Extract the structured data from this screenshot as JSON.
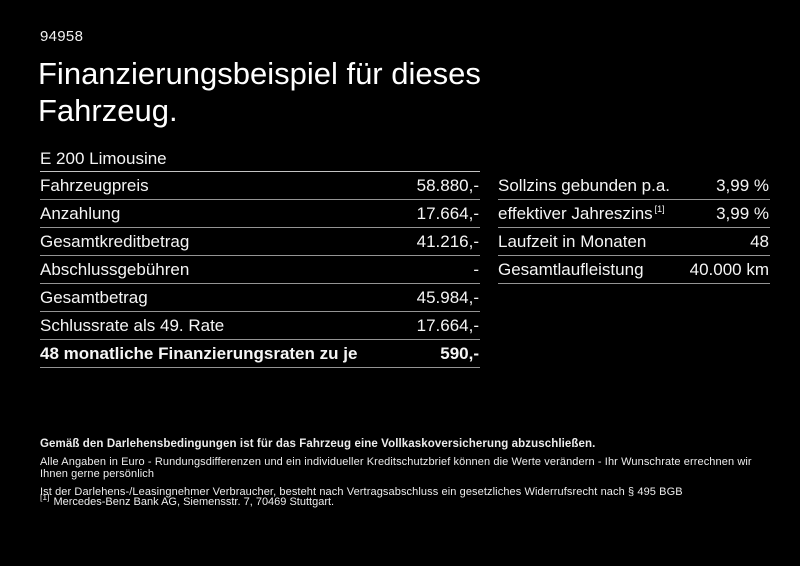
{
  "page": {
    "ref_number": "94958",
    "title_line1": "Finanzierungsbeispiel für dieses",
    "title_line2": "Fahrzeug."
  },
  "finance_table": {
    "header": "E 200 Limousine",
    "rows": [
      {
        "label": "Fahrzeugpreis",
        "value": "58.880,-"
      },
      {
        "label": "Anzahlung",
        "value": "17.664,-"
      },
      {
        "label": "Gesamtkreditbetrag",
        "value": "41.216,-"
      },
      {
        "label": "Abschlussgebühren",
        "value": "-"
      },
      {
        "label": "Gesamtbetrag",
        "value": "45.984,-"
      },
      {
        "label": "Schlussrate als 49. Rate",
        "value": "17.664,-"
      },
      {
        "label": "48 monatliche Finanzierungsraten zu je",
        "value": "590,-"
      }
    ]
  },
  "conditions_table": {
    "rows": [
      {
        "label": "Sollzins gebunden p.a.",
        "value": "3,99 %"
      },
      {
        "label": "effektiver Jahreszins",
        "sup": "[1]",
        "value": "3,99 %"
      },
      {
        "label": "Laufzeit in Monaten",
        "value": "48"
      },
      {
        "label": "Gesamtlaufleistung",
        "value": "40.000 km"
      }
    ]
  },
  "footer": {
    "line_bold": "Gemäß den Darlehensbedingungen ist für das Fahrzeug eine Vollkaskoversicherung abzuschließen.",
    "line2": "Alle Angaben in Euro - Rundungsdifferenzen und ein individueller Kreditschutzbrief können die Werte verändern - Ihr Wunschrate errechnen wir Ihnen gerne persönlich",
    "line3": "Ist der Darlehens-/Leasingnehmer Verbraucher, besteht nach Vertragsabschluss ein gesetzliches Widerrufsrecht nach § 495 BGB",
    "footnote_marker": "[1]",
    "footnote_text": "Mercedes-Benz Bank AG, Siemensstr. 7, 70469 Stuttgart."
  },
  "colors": {
    "background": "#000000",
    "text": "#ffffff",
    "divider": "#949494",
    "header_divider": "#c4c4c4"
  }
}
